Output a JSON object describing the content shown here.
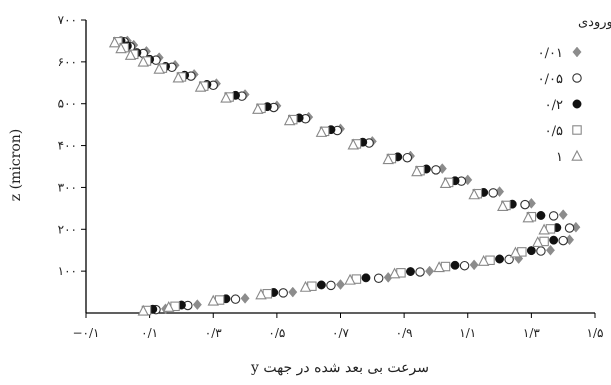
{
  "chart_data": {
    "type": "scatter",
    "xlabel": "سرعت بی بعد شده در جهت y",
    "ylabel": "z (micron)",
    "xlim": [
      -0.1,
      1.5
    ],
    "ylim": [
      0,
      700
    ],
    "x_ticks": [
      -0.1,
      0.1,
      0.3,
      0.5,
      0.7,
      0.9,
      1.1,
      1.3,
      1.5
    ],
    "x_tick_labels": [
      "−۰/۱",
      "۰/۱",
      "۰/۳",
      "۰/۵",
      "۰/۷",
      "۰/۹",
      "۱/۱",
      "۱/۳",
      "۱/۵"
    ],
    "y_ticks": [
      100,
      200,
      300,
      400,
      500,
      600,
      700
    ],
    "y_tick_labels": [
      "۱۰۰",
      "۲۰۰",
      "۳۰۰",
      "۴۰۰",
      "۵۰۰",
      "۶۰۰",
      "۷۰۰"
    ],
    "grid": false,
    "legend": {
      "title": "سرعت ورودی",
      "position": "top-right"
    },
    "series": [
      {
        "name": "۰/۰۱",
        "marker": "diamond",
        "color": "#8c8c8c",
        "points": [
          [
            0.03,
            650
          ],
          [
            0.05,
            640
          ],
          [
            0.09,
            625
          ],
          [
            0.13,
            610
          ],
          [
            0.18,
            592
          ],
          [
            0.24,
            570
          ],
          [
            0.31,
            548
          ],
          [
            0.4,
            522
          ],
          [
            0.5,
            495
          ],
          [
            0.6,
            468
          ],
          [
            0.7,
            440
          ],
          [
            0.8,
            410
          ],
          [
            0.92,
            375
          ],
          [
            1.02,
            345
          ],
          [
            1.1,
            318
          ],
          [
            1.2,
            290
          ],
          [
            1.3,
            262
          ],
          [
            1.4,
            235
          ],
          [
            1.44,
            205
          ],
          [
            1.42,
            175
          ],
          [
            1.36,
            150
          ],
          [
            1.26,
            130
          ],
          [
            1.12,
            115
          ],
          [
            0.98,
            100
          ],
          [
            0.85,
            85
          ],
          [
            0.7,
            68
          ],
          [
            0.55,
            50
          ],
          [
            0.4,
            35
          ],
          [
            0.25,
            20
          ],
          [
            0.15,
            10
          ]
        ]
      },
      {
        "name": "۰/۰۵",
        "marker": "circle",
        "color": "#333333",
        "points": [
          [
            0.02,
            648
          ],
          [
            0.04,
            636
          ],
          [
            0.08,
            620
          ],
          [
            0.12,
            604
          ],
          [
            0.17,
            587
          ],
          [
            0.23,
            566
          ],
          [
            0.3,
            544
          ],
          [
            0.39,
            518
          ],
          [
            0.49,
            491
          ],
          [
            0.59,
            464
          ],
          [
            0.69,
            436
          ],
          [
            0.79,
            406
          ],
          [
            0.91,
            371
          ],
          [
            1.0,
            342
          ],
          [
            1.08,
            315
          ],
          [
            1.18,
            287
          ],
          [
            1.28,
            259
          ],
          [
            1.37,
            232
          ],
          [
            1.42,
            203
          ],
          [
            1.4,
            173
          ],
          [
            1.33,
            148
          ],
          [
            1.23,
            128
          ],
          [
            1.09,
            113
          ],
          [
            0.95,
            98
          ],
          [
            0.82,
            83
          ],
          [
            0.67,
            66
          ],
          [
            0.52,
            48
          ],
          [
            0.37,
            33
          ],
          [
            0.22,
            18
          ],
          [
            0.12,
            8
          ]
        ]
      },
      {
        "name": "۰/۲",
        "marker": "dot",
        "color": "#111111",
        "points": [
          [
            0.01,
            650
          ],
          [
            0.03,
            638
          ],
          [
            0.06,
            622
          ],
          [
            0.1,
            606
          ],
          [
            0.15,
            589
          ],
          [
            0.21,
            568
          ],
          [
            0.28,
            546
          ],
          [
            0.37,
            520
          ],
          [
            0.47,
            493
          ],
          [
            0.57,
            466
          ],
          [
            0.67,
            438
          ],
          [
            0.77,
            408
          ],
          [
            0.88,
            373
          ],
          [
            0.97,
            344
          ],
          [
            1.06,
            316
          ],
          [
            1.15,
            288
          ],
          [
            1.24,
            260
          ],
          [
            1.33,
            233
          ],
          [
            1.38,
            204
          ],
          [
            1.37,
            174
          ],
          [
            1.3,
            149
          ],
          [
            1.2,
            129
          ],
          [
            1.06,
            114
          ],
          [
            0.92,
            99
          ],
          [
            0.78,
            84
          ],
          [
            0.64,
            67
          ],
          [
            0.49,
            49
          ],
          [
            0.34,
            34
          ],
          [
            0.2,
            19
          ],
          [
            0.11,
            9
          ]
        ]
      },
      {
        "name": "۰/۵",
        "marker": "square",
        "color": "#888888",
        "points": [
          [
            0.0,
            648
          ],
          [
            0.02,
            634
          ],
          [
            0.05,
            618
          ],
          [
            0.09,
            602
          ],
          [
            0.14,
            585
          ],
          [
            0.2,
            564
          ],
          [
            0.27,
            542
          ],
          [
            0.35,
            516
          ],
          [
            0.45,
            489
          ],
          [
            0.55,
            462
          ],
          [
            0.65,
            434
          ],
          [
            0.75,
            404
          ],
          [
            0.86,
            369
          ],
          [
            0.95,
            340
          ],
          [
            1.04,
            312
          ],
          [
            1.13,
            285
          ],
          [
            1.22,
            257
          ],
          [
            1.3,
            230
          ],
          [
            1.36,
            201
          ],
          [
            1.34,
            171
          ],
          [
            1.27,
            146
          ],
          [
            1.17,
            126
          ],
          [
            1.03,
            111
          ],
          [
            0.89,
            96
          ],
          [
            0.75,
            81
          ],
          [
            0.61,
            64
          ],
          [
            0.47,
            46
          ],
          [
            0.32,
            31
          ],
          [
            0.18,
            16
          ],
          [
            0.09,
            6
          ]
        ]
      },
      {
        "name": "۱",
        "marker": "triangle",
        "color": "#888888",
        "points": [
          [
            -0.01,
            646
          ],
          [
            0.01,
            632
          ],
          [
            0.04,
            616
          ],
          [
            0.08,
            600
          ],
          [
            0.13,
            583
          ],
          [
            0.19,
            562
          ],
          [
            0.26,
            540
          ],
          [
            0.34,
            514
          ],
          [
            0.44,
            487
          ],
          [
            0.54,
            460
          ],
          [
            0.64,
            432
          ],
          [
            0.74,
            402
          ],
          [
            0.85,
            367
          ],
          [
            0.94,
            338
          ],
          [
            1.03,
            310
          ],
          [
            1.12,
            283
          ],
          [
            1.21,
            255
          ],
          [
            1.29,
            228
          ],
          [
            1.34,
            199
          ],
          [
            1.32,
            169
          ],
          [
            1.25,
            144
          ],
          [
            1.15,
            124
          ],
          [
            1.01,
            109
          ],
          [
            0.87,
            94
          ],
          [
            0.73,
            79
          ],
          [
            0.59,
            62
          ],
          [
            0.45,
            44
          ],
          [
            0.3,
            29
          ],
          [
            0.16,
            14
          ],
          [
            0.08,
            5
          ]
        ]
      }
    ]
  }
}
